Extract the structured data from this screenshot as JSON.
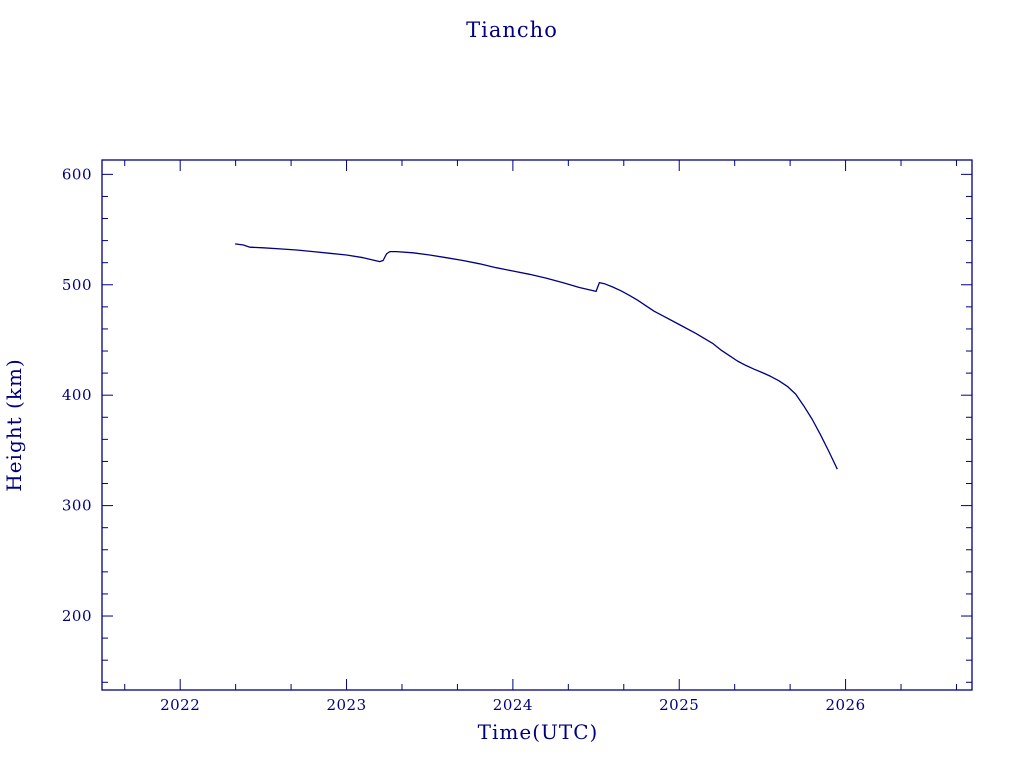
{
  "chart_data": {
    "type": "line",
    "title": "Tiancho",
    "xlabel": "Time(UTC)",
    "ylabel": "Height (km)",
    "xlim": [
      2021.53,
      2026.76
    ],
    "ylim": [
      133,
      613
    ],
    "x_ticks": [
      2022,
      2023,
      2024,
      2025,
      2026
    ],
    "y_ticks": [
      200,
      300,
      400,
      500,
      600
    ],
    "grid": false,
    "color": "#00007f",
    "series": [
      {
        "x": [
          2022.33,
          2022.38,
          2022.4,
          2022.42,
          2022.5,
          2022.6,
          2022.7,
          2022.8,
          2022.9,
          2023.0,
          2023.1,
          2023.2,
          2023.22,
          2023.24,
          2023.26,
          2023.3,
          2023.4,
          2023.5,
          2023.6,
          2023.7,
          2023.8,
          2023.9,
          2024.0,
          2024.1,
          2024.2,
          2024.3,
          2024.4,
          2024.5,
          2024.51,
          2024.52,
          2024.55,
          2024.6,
          2024.65,
          2024.7,
          2024.75,
          2024.8,
          2024.85,
          2024.9,
          2025.0,
          2025.1,
          2025.2,
          2025.25,
          2025.3,
          2025.35,
          2025.4,
          2025.45,
          2025.5,
          2025.55,
          2025.6,
          2025.65,
          2025.7,
          2025.75,
          2025.8,
          2025.85,
          2025.9,
          2025.95
        ],
        "y": [
          537,
          536,
          535,
          534,
          533.5,
          532.5,
          531.5,
          530,
          528.5,
          527,
          524.5,
          521,
          522,
          528,
          530,
          530,
          529,
          527,
          524.5,
          522,
          519,
          515.5,
          512.5,
          509.5,
          506,
          502,
          497.5,
          494,
          498,
          502,
          501,
          498,
          494.5,
          490.5,
          486,
          481,
          476,
          472,
          464,
          456,
          447,
          441,
          436,
          431,
          427,
          423.5,
          420.5,
          417,
          413,
          408,
          401,
          390,
          378,
          364,
          349,
          333
        ]
      }
    ]
  }
}
